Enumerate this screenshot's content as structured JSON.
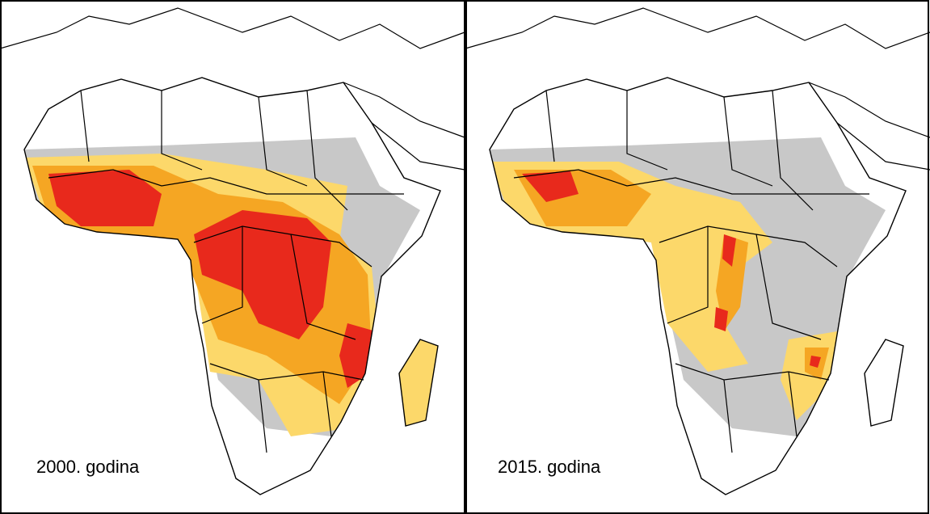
{
  "panels": [
    {
      "label": "2000. godina"
    },
    {
      "label": "2015. godina"
    }
  ]
}
